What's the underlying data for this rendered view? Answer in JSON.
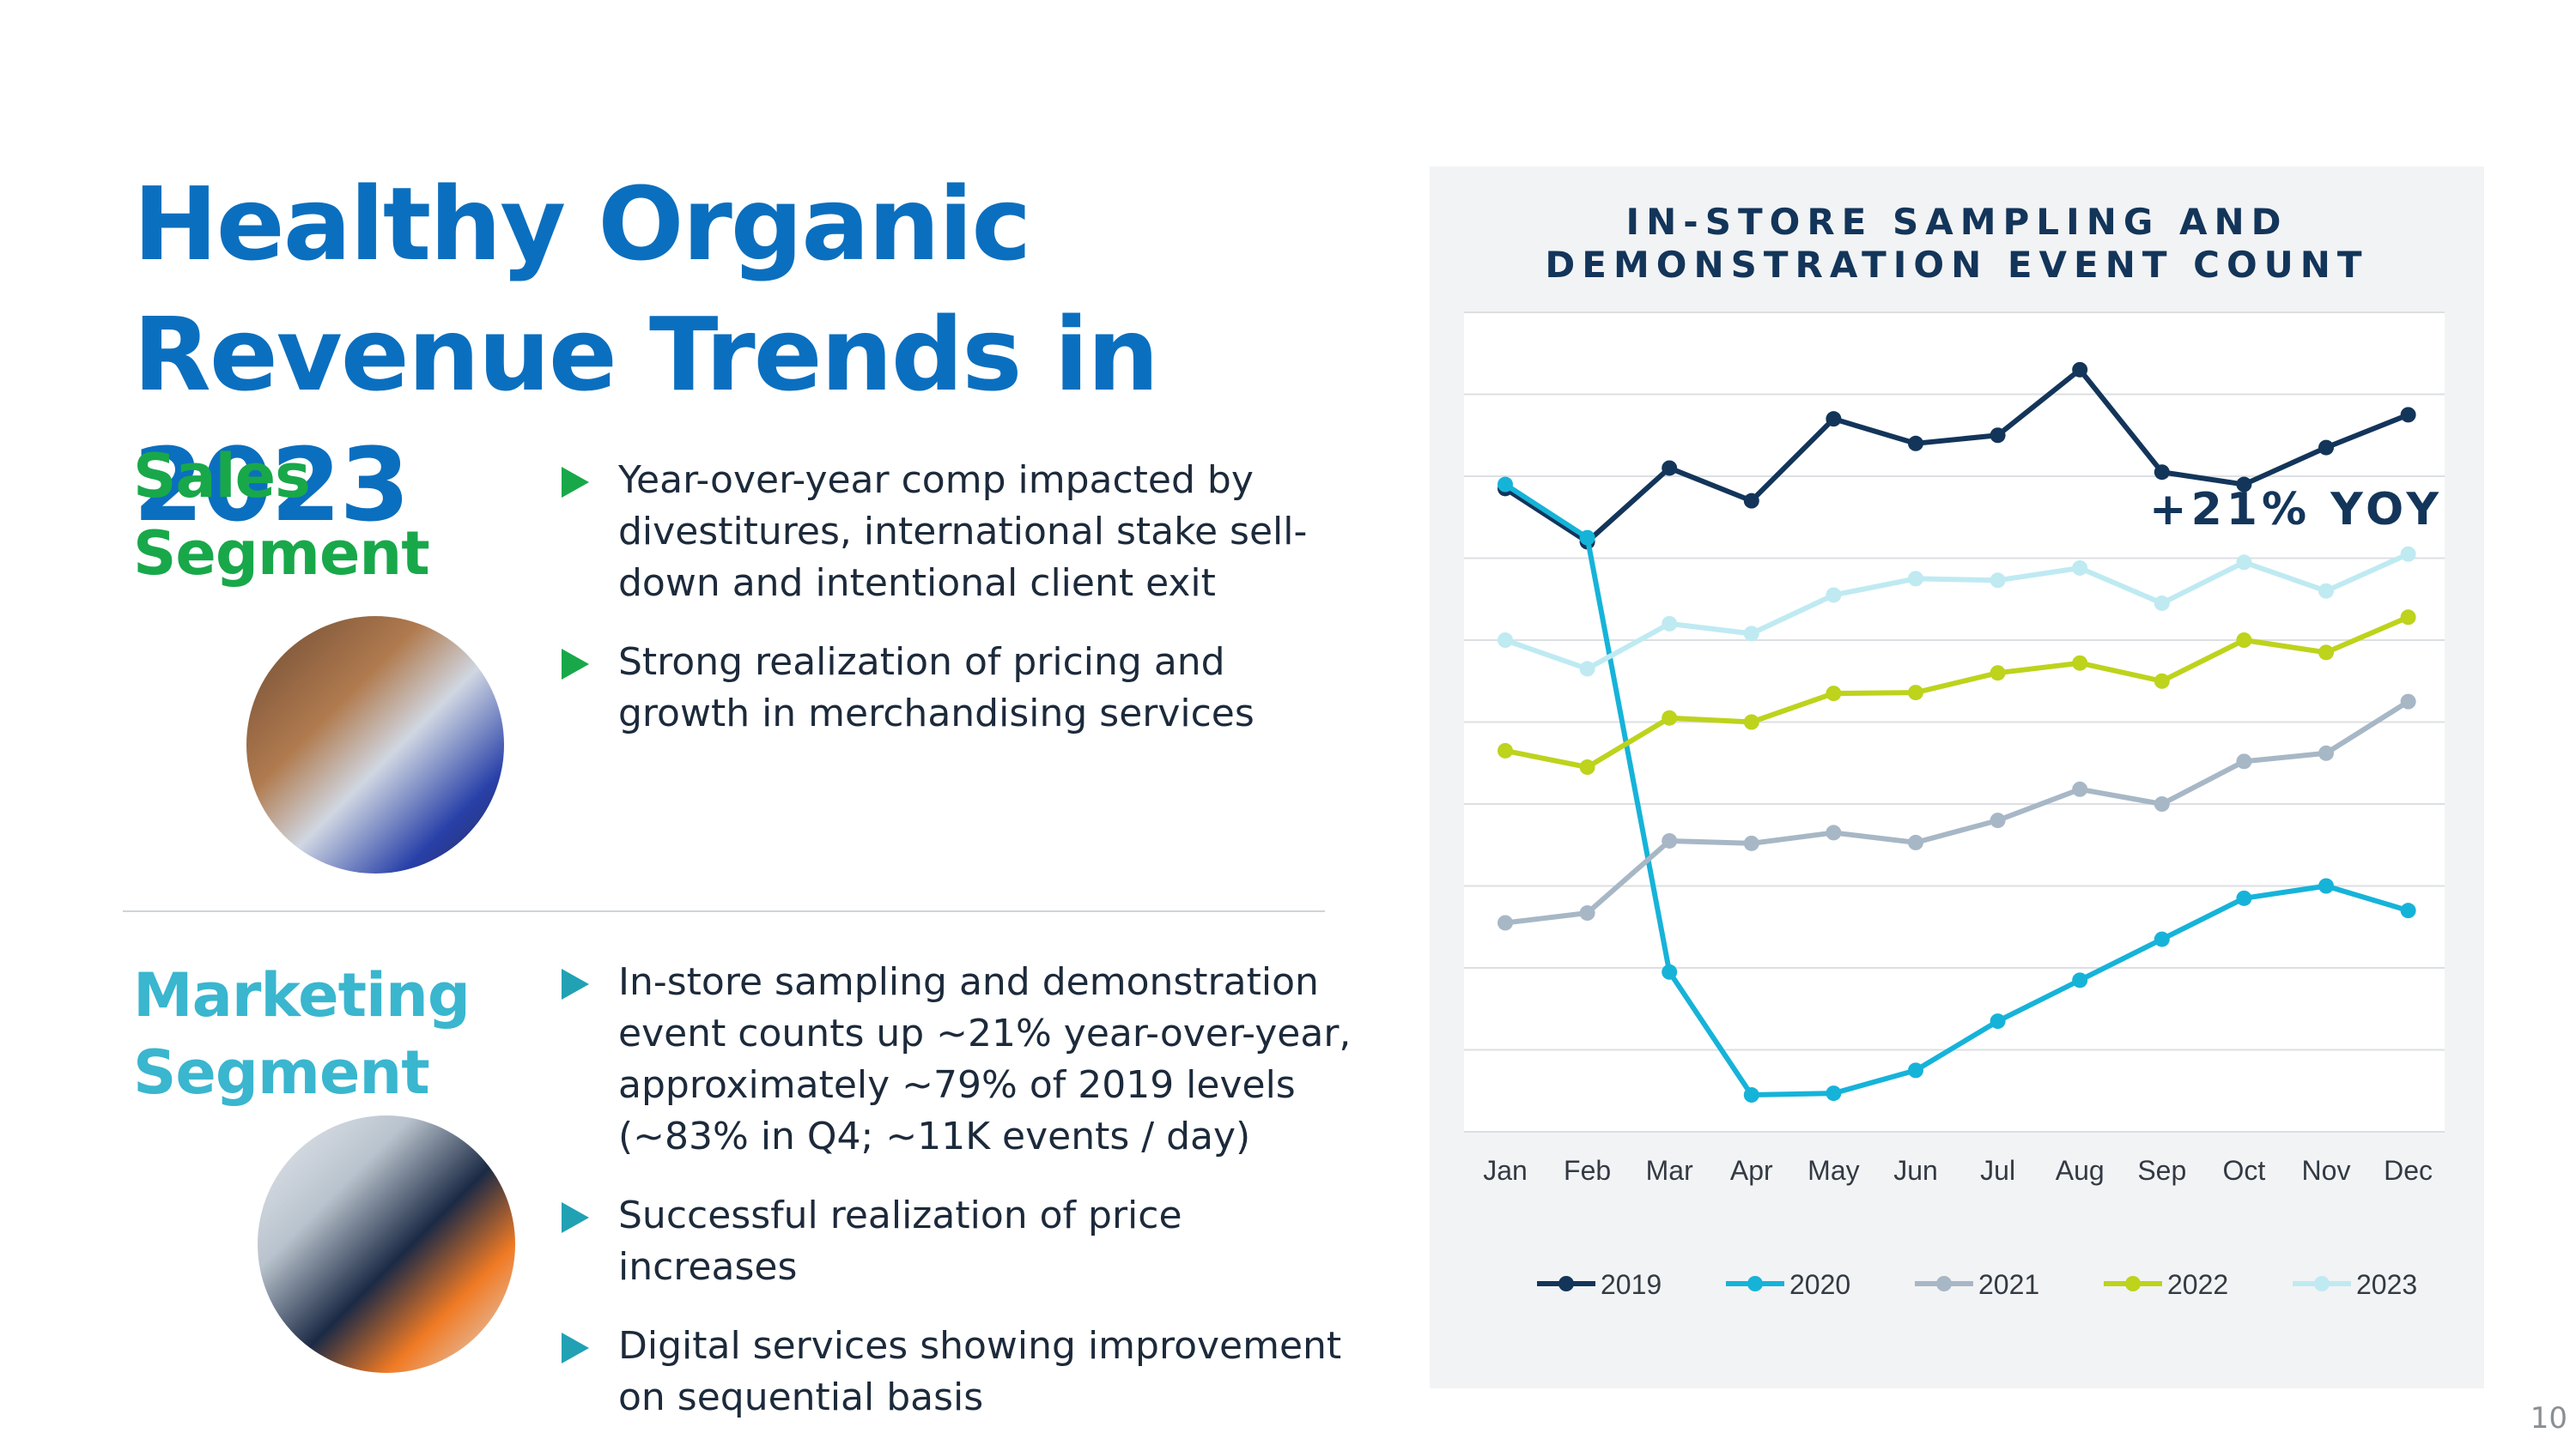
{
  "title": {
    "line1": "Healthy Organic",
    "line2": "Revenue Trends in 2023"
  },
  "sales": {
    "heading_line1": "Sales",
    "heading_line2": "Segment",
    "bullets": [
      "Year-over-year comp impacted by divestitures, international stake sell-down and intentional client exit",
      "Strong realization of pricing and growth in merchandising services"
    ]
  },
  "marketing": {
    "heading_line1": "Marketing",
    "heading_line2": "Segment",
    "bullets": [
      "In-store sampling and demonstration event counts up ~21% year-over-year, approximately ~79% of 2019 levels (~83% in Q4; ~11K events / day)",
      "Successful realization of price increases",
      "Digital services showing improvement on sequential basis"
    ]
  },
  "page_number": "10",
  "chart_data": {
    "type": "line",
    "title_line1": "IN-STORE SAMPLING AND",
    "title_line2": "DEMONSTRATION EVENT COUNT",
    "annotation": "+21% YOY",
    "categories": [
      "Jan",
      "Feb",
      "Mar",
      "Apr",
      "May",
      "Jun",
      "Jul",
      "Aug",
      "Sep",
      "Oct",
      "Nov",
      "Dec"
    ],
    "ylim": [
      0,
      10
    ],
    "grid": true,
    "legend_position": "bottom",
    "series": [
      {
        "name": "2019",
        "color": "#13355a",
        "values": [
          7.85,
          7.2,
          8.1,
          7.7,
          8.7,
          8.4,
          8.5,
          9.3,
          8.05,
          7.9,
          8.35,
          8.75
        ]
      },
      {
        "name": "2020",
        "color": "#16b3d9",
        "values": [
          7.9,
          7.25,
          1.95,
          0.45,
          0.47,
          0.75,
          1.35,
          1.85,
          2.35,
          2.85,
          3.0,
          2.7
        ]
      },
      {
        "name": "2021",
        "color": "#a7b7c6",
        "values": [
          2.55,
          2.67,
          3.55,
          3.52,
          3.65,
          3.53,
          3.8,
          4.18,
          4.0,
          4.52,
          4.62,
          5.25
        ]
      },
      {
        "name": "2022",
        "color": "#bdd31c",
        "values": [
          4.65,
          4.45,
          5.05,
          5.0,
          5.35,
          5.36,
          5.6,
          5.72,
          5.5,
          6.0,
          5.85,
          6.28
        ]
      },
      {
        "name": "2023",
        "color": "#bfeaf2",
        "values": [
          6.0,
          5.65,
          6.2,
          6.08,
          6.55,
          6.75,
          6.73,
          6.88,
          6.45,
          6.95,
          6.6,
          7.05
        ]
      }
    ]
  }
}
